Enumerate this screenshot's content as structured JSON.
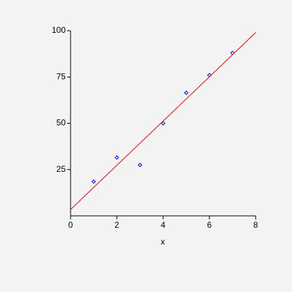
{
  "chart_data": {
    "type": "scatter",
    "xlabel": "x",
    "xlim": [
      0,
      8
    ],
    "ylim": [
      0,
      100
    ],
    "xticks": [
      0,
      2,
      4,
      6,
      8
    ],
    "yticks": [
      25,
      50,
      75,
      100
    ],
    "series": [
      {
        "type": "scatter",
        "color": "#0000ff",
        "x": [
          1,
          2,
          3,
          4,
          5,
          6,
          7
        ],
        "values": [
          18.5,
          31.5,
          27.5,
          50,
          66.5,
          76,
          88
        ]
      },
      {
        "type": "line",
        "color": "#ff0000",
        "x": [
          0,
          8
        ],
        "values": [
          3.4,
          99
        ]
      }
    ]
  }
}
